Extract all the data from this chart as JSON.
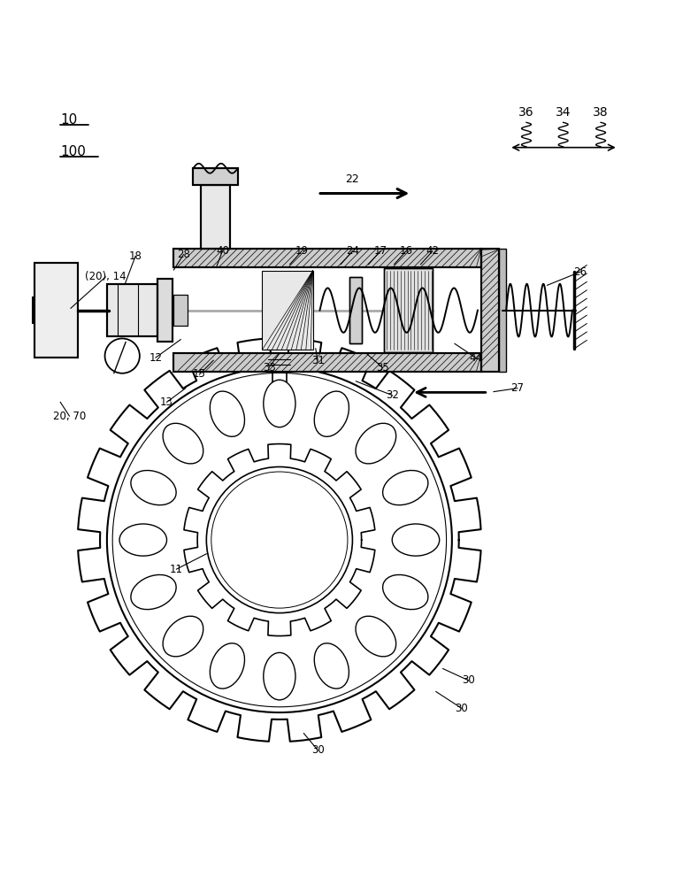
{
  "bg_color": "#ffffff",
  "line_color": "#000000",
  "fig_width": 7.89,
  "fig_height": 10.0
}
